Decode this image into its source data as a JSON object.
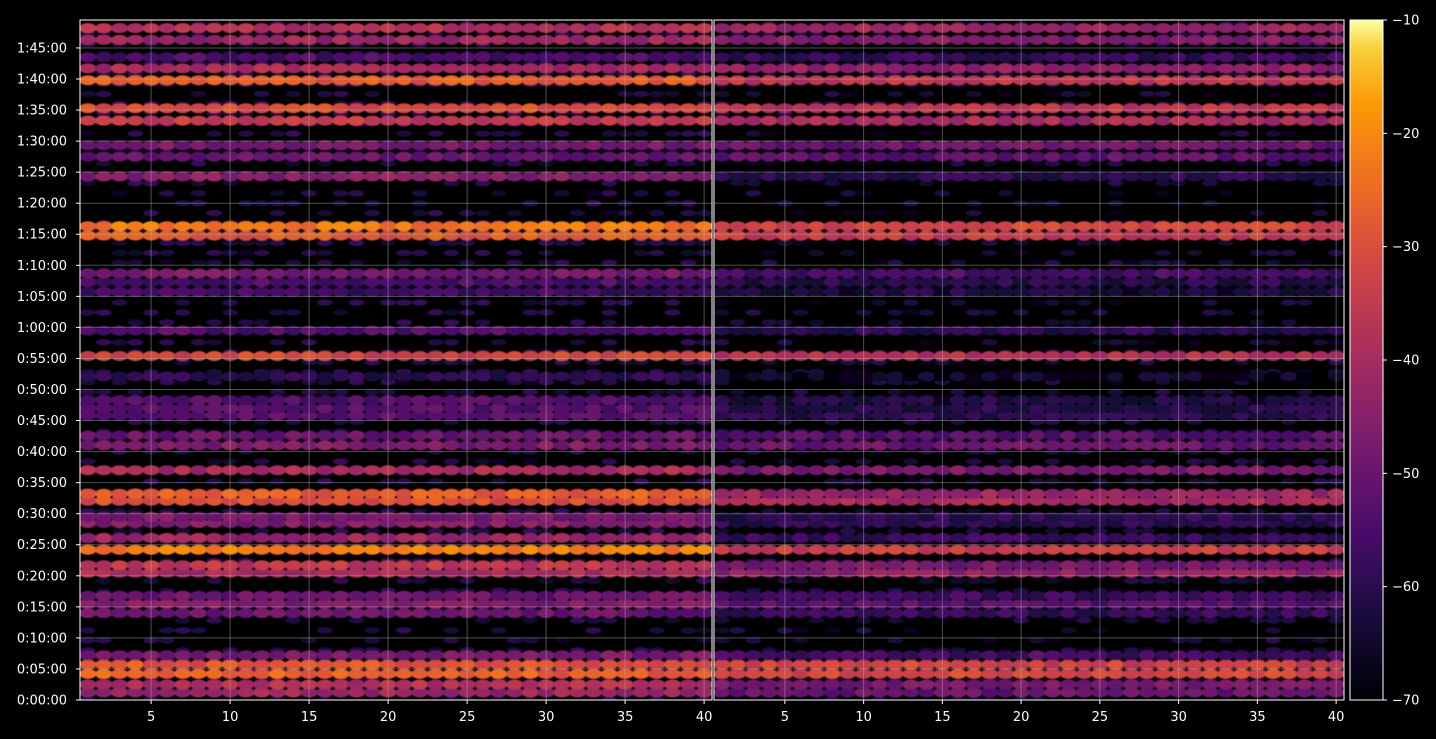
{
  "chart_data": {
    "type": "heatmap",
    "title": "",
    "xlabel": "",
    "ylabel": "",
    "panels": [
      {
        "name": "left",
        "xlim": [
          1,
          40
        ],
        "x_ticks": [
          5,
          10,
          15,
          20,
          25,
          30,
          35,
          40
        ]
      },
      {
        "name": "right",
        "xlim": [
          1,
          40
        ],
        "x_ticks": [
          5,
          10,
          15,
          20,
          25,
          30,
          35,
          40
        ]
      }
    ],
    "y_ticks": [
      "0:00:00",
      "0:05:00",
      "0:10:00",
      "0:15:00",
      "0:20:00",
      "0:25:00",
      "0:30:00",
      "0:35:00",
      "0:40:00",
      "0:45:00",
      "0:50:00",
      "0:55:00",
      "1:00:00",
      "1:05:00",
      "1:10:00",
      "1:15:00",
      "1:20:00",
      "1:25:00",
      "1:30:00",
      "1:35:00",
      "1:40:00",
      "1:45:00"
    ],
    "ylim_minutes": [
      0,
      109.5
    ],
    "grid": true,
    "colormap": "inferno",
    "colorbar": {
      "range": [
        -70,
        -10
      ],
      "ticks": [
        "−10",
        "−20",
        "−30",
        "−40",
        "−50",
        "−60",
        "−70"
      ]
    },
    "bands_minutes_dB": [
      {
        "t": 1.2,
        "left": -42,
        "right": -50
      },
      {
        "t": 2.5,
        "left": -38,
        "right": -48
      },
      {
        "t": 4.2,
        "left": -27,
        "right": -32
      },
      {
        "t": 5.7,
        "left": -29,
        "right": -33
      },
      {
        "t": 7.2,
        "left": -48,
        "right": -56
      },
      {
        "t": 14.0,
        "left": -50,
        "right": -58
      },
      {
        "t": 15.5,
        "left": -46,
        "right": -53
      },
      {
        "t": 16.8,
        "left": -50,
        "right": -57
      },
      {
        "t": 20.5,
        "left": -40,
        "right": -44
      },
      {
        "t": 21.7,
        "left": -36,
        "right": -48
      },
      {
        "t": 24.2,
        "left": -22,
        "right": -34
      },
      {
        "t": 26.1,
        "left": -42,
        "right": -58
      },
      {
        "t": 28.5,
        "left": -46,
        "right": -60
      },
      {
        "t": 29.5,
        "left": -48,
        "right": -60
      },
      {
        "t": 32.1,
        "left": -30,
        "right": -40
      },
      {
        "t": 33.2,
        "left": -28,
        "right": -42
      },
      {
        "t": 37.0,
        "left": -40,
        "right": -48
      },
      {
        "t": 41.0,
        "left": -47,
        "right": -50
      },
      {
        "t": 42.6,
        "left": -50,
        "right": -53
      },
      {
        "t": 45.8,
        "left": -52,
        "right": -60
      },
      {
        "t": 47.0,
        "left": -53,
        "right": -61
      },
      {
        "t": 48.3,
        "left": -54,
        "right": -62
      },
      {
        "t": 52.1,
        "left": -60,
        "right": -66
      },
      {
        "t": 55.4,
        "left": -32,
        "right": -38
      },
      {
        "t": 59.5,
        "left": -54,
        "right": -60
      },
      {
        "t": 65.7,
        "left": -56,
        "right": -62
      },
      {
        "t": 67.3,
        "left": -55,
        "right": -61
      },
      {
        "t": 68.7,
        "left": -48,
        "right": -55
      },
      {
        "t": 74.8,
        "left": -28,
        "right": -35
      },
      {
        "t": 76.3,
        "left": -23,
        "right": -32
      },
      {
        "t": 84.3,
        "left": -45,
        "right": -60
      },
      {
        "t": 87.5,
        "left": -50,
        "right": -52
      },
      {
        "t": 89.3,
        "left": -48,
        "right": -50
      },
      {
        "t": 93.3,
        "left": -35,
        "right": -40
      },
      {
        "t": 95.3,
        "left": -30,
        "right": -36
      },
      {
        "t": 99.8,
        "left": -28,
        "right": -36
      },
      {
        "t": 101.7,
        "left": -40,
        "right": -44
      },
      {
        "t": 103.5,
        "left": -55,
        "right": -58
      },
      {
        "t": 106.3,
        "left": -42,
        "right": -46
      },
      {
        "t": 108.2,
        "left": -38,
        "right": -42
      }
    ]
  }
}
